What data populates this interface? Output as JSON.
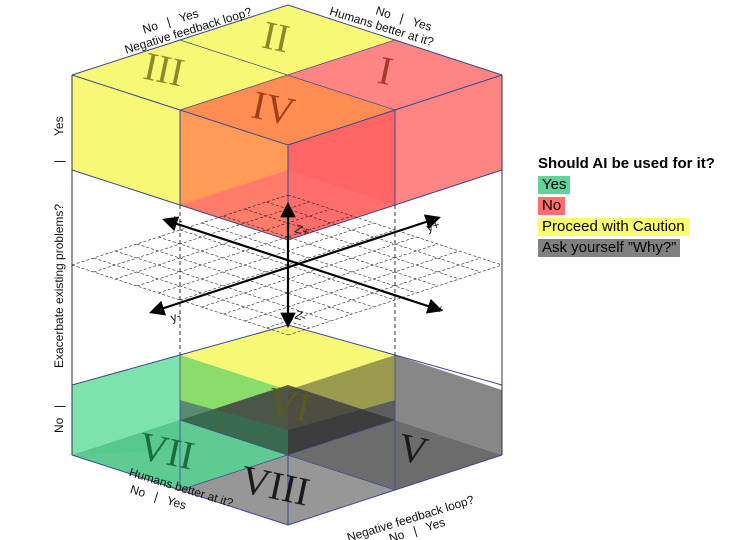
{
  "axes": {
    "top_left": {
      "title": "Negative feedback loop?",
      "choices": "No   |   Yes"
    },
    "top_right": {
      "title": "Humans better at it?",
      "choices": "No   |   Yes"
    },
    "bottom_left": {
      "title": "Humans better at it?",
      "choices": "No   |   Yes"
    },
    "bottom_right": {
      "title": "Negative feedback loop?",
      "choices": "No   |   Yes"
    },
    "vertical": {
      "title": "Exacerbate existing problems?",
      "top": "Yes",
      "divider1": "|",
      "bottom": "No",
      "divider2": "|"
    }
  },
  "axis_labels": {
    "x_minus": "x-",
    "x_plus": "x+",
    "y_plus": "y+",
    "y_minus": "y-",
    "z_plus": "Z+",
    "z_minus": "Z-"
  },
  "octants": {
    "I": "I",
    "II": "II",
    "III": "III",
    "IV": "IV",
    "V": "V",
    "VI": "VI",
    "VII": "VII",
    "VIII": "VIII"
  },
  "legend": {
    "title": "Should AI be used for it?",
    "items": [
      {
        "label": "Yes",
        "color": "#5fd39b"
      },
      {
        "label": "No",
        "color": "#ff6f6f"
      },
      {
        "label": "Proceed with Caution",
        "color": "#fbfb72"
      },
      {
        "label": "Ask yourself ”Why?”",
        "color": "#808080"
      }
    ]
  },
  "colors": {
    "yellow": "#f7f768",
    "red": "#ff6b6b",
    "orange": "#ff8a3a",
    "green": "#6ee0a6",
    "gray": "#6e6e6e"
  }
}
